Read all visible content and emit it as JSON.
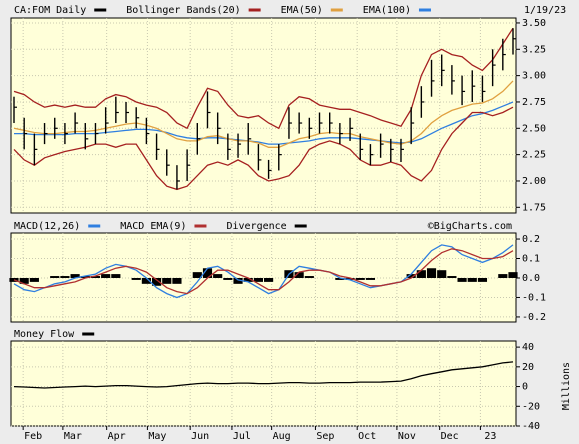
{
  "chart_data": [
    {
      "type": "stock",
      "date": "1/19/23",
      "ylim": [
        1.696,
        3.547
      ],
      "yticks": [
        1.75,
        {
          "value": 2,
          "label": "2.00"
        },
        2.25,
        {
          "value": 2.5,
          "label": "2.50"
        },
        2.75,
        {
          "value": 3,
          "label": "3.00"
        },
        3.25,
        {
          "value": 3.5,
          "label": "3.50"
        }
      ],
      "grid": true,
      "series": [
        {
          "name": "CA:FOM Daily",
          "color": "#000000",
          "high": [
            2.8,
            2.6,
            2.45,
            2.55,
            2.6,
            2.55,
            2.65,
            2.55,
            2.55,
            2.7,
            2.8,
            2.75,
            2.7,
            2.6,
            2.45,
            2.3,
            2.15,
            2.3,
            2.55,
            2.85,
            2.65,
            2.45,
            2.45,
            2.55,
            2.35,
            2.2,
            2.35,
            2.7,
            2.65,
            2.6,
            2.65,
            2.65,
            2.55,
            2.6,
            2.45,
            2.35,
            2.45,
            2.4,
            2.4,
            2.7,
            2.9,
            3.15,
            3.2,
            3.1,
            3.0,
            3.05,
            3.0,
            3.25,
            3.35,
            3.45
          ],
          "low": [
            2.55,
            2.3,
            2.15,
            2.35,
            2.4,
            2.35,
            2.45,
            2.3,
            2.35,
            2.45,
            2.55,
            2.55,
            2.5,
            2.35,
            2.2,
            2.05,
            1.92,
            2.0,
            2.25,
            2.5,
            2.35,
            2.2,
            2.22,
            2.25,
            2.1,
            2.02,
            2.1,
            2.4,
            2.45,
            2.4,
            2.45,
            2.45,
            2.35,
            2.38,
            2.2,
            2.15,
            2.22,
            2.18,
            2.18,
            2.35,
            2.6,
            2.8,
            2.9,
            2.82,
            2.72,
            2.75,
            2.75,
            2.9,
            3.05,
            3.2
          ],
          "close": [
            2.7,
            2.45,
            2.3,
            2.45,
            2.5,
            2.45,
            2.55,
            2.4,
            2.45,
            2.55,
            2.65,
            2.65,
            2.6,
            2.45,
            2.3,
            2.15,
            2.0,
            2.15,
            2.4,
            2.65,
            2.5,
            2.3,
            2.35,
            2.4,
            2.2,
            2.1,
            2.25,
            2.55,
            2.55,
            2.5,
            2.55,
            2.55,
            2.45,
            2.5,
            2.3,
            2.25,
            2.35,
            2.3,
            2.3,
            2.55,
            2.75,
            2.95,
            3.05,
            2.95,
            2.85,
            2.9,
            2.85,
            3.1,
            3.2,
            3.35
          ]
        },
        {
          "name": "Bollinger Bands(20)",
          "color": "#a52020",
          "upper": [
            2.85,
            2.82,
            2.75,
            2.7,
            2.72,
            2.7,
            2.72,
            2.7,
            2.7,
            2.78,
            2.82,
            2.8,
            2.75,
            2.72,
            2.7,
            2.65,
            2.55,
            2.5,
            2.7,
            2.88,
            2.85,
            2.72,
            2.62,
            2.6,
            2.62,
            2.55,
            2.5,
            2.72,
            2.8,
            2.78,
            2.72,
            2.7,
            2.68,
            2.68,
            2.65,
            2.62,
            2.58,
            2.55,
            2.52,
            2.68,
            3.0,
            3.2,
            3.25,
            3.2,
            3.18,
            3.1,
            3.05,
            3.15,
            3.3,
            3.45
          ],
          "lower": [
            2.3,
            2.2,
            2.15,
            2.22,
            2.25,
            2.28,
            2.3,
            2.32,
            2.35,
            2.35,
            2.32,
            2.35,
            2.35,
            2.2,
            2.05,
            1.95,
            1.92,
            1.95,
            2.05,
            2.15,
            2.18,
            2.15,
            2.2,
            2.15,
            2.05,
            2.0,
            2.02,
            2.05,
            2.15,
            2.3,
            2.35,
            2.38,
            2.35,
            2.3,
            2.2,
            2.15,
            2.15,
            2.18,
            2.15,
            2.05,
            2.0,
            2.1,
            2.3,
            2.45,
            2.55,
            2.65,
            2.65,
            2.62,
            2.65,
            2.7
          ]
        },
        {
          "name": "EMA(50)",
          "color": "#e0a040",
          "values": [
            2.5,
            2.48,
            2.46,
            2.45,
            2.45,
            2.46,
            2.47,
            2.47,
            2.48,
            2.5,
            2.52,
            2.54,
            2.55,
            2.53,
            2.5,
            2.45,
            2.4,
            2.38,
            2.38,
            2.42,
            2.43,
            2.4,
            2.38,
            2.38,
            2.36,
            2.32,
            2.32,
            2.36,
            2.4,
            2.42,
            2.45,
            2.46,
            2.45,
            2.45,
            2.42,
            2.4,
            2.38,
            2.36,
            2.35,
            2.38,
            2.45,
            2.55,
            2.62,
            2.67,
            2.7,
            2.73,
            2.74,
            2.78,
            2.85,
            2.95
          ]
        },
        {
          "name": "EMA(100)",
          "color": "#2f7fe0",
          "values": [
            2.45,
            2.45,
            2.44,
            2.44,
            2.44,
            2.44,
            2.45,
            2.45,
            2.45,
            2.46,
            2.47,
            2.48,
            2.49,
            2.49,
            2.48,
            2.46,
            2.43,
            2.41,
            2.4,
            2.41,
            2.41,
            2.4,
            2.39,
            2.38,
            2.37,
            2.35,
            2.35,
            2.36,
            2.37,
            2.38,
            2.4,
            2.41,
            2.41,
            2.41,
            2.4,
            2.39,
            2.38,
            2.37,
            2.36,
            2.37,
            2.4,
            2.45,
            2.5,
            2.54,
            2.58,
            2.62,
            2.64,
            2.67,
            2.71,
            2.75
          ]
        }
      ]
    },
    {
      "type": "line",
      "annotation": "©BigCharts.com",
      "ylim": [
        -0.226,
        0.231
      ],
      "yticks": [
        0.2,
        0.1,
        {
          "value": 0,
          "label": "0.0"
        },
        -0.1,
        -0.2
      ],
      "grid": true,
      "series": [
        {
          "name": "MACD(12,26)",
          "color": "#2f7fe0",
          "values": [
            -0.03,
            -0.06,
            -0.07,
            -0.05,
            -0.03,
            -0.02,
            0.0,
            0.01,
            0.02,
            0.05,
            0.07,
            0.06,
            0.04,
            0.0,
            -0.05,
            -0.08,
            -0.1,
            -0.08,
            -0.02,
            0.05,
            0.06,
            0.03,
            -0.01,
            -0.02,
            -0.05,
            -0.08,
            -0.06,
            0.02,
            0.06,
            0.05,
            0.04,
            0.03,
            0.0,
            -0.01,
            -0.03,
            -0.05,
            -0.04,
            -0.03,
            -0.02,
            0.02,
            0.08,
            0.14,
            0.17,
            0.16,
            0.12,
            0.1,
            0.08,
            0.1,
            0.13,
            0.17
          ]
        },
        {
          "name": "MACD EMA(9)",
          "color": "#b03030",
          "values": [
            -0.01,
            -0.03,
            -0.05,
            -0.05,
            -0.04,
            -0.03,
            -0.02,
            0.0,
            0.01,
            0.03,
            0.05,
            0.06,
            0.05,
            0.03,
            -0.01,
            -0.05,
            -0.07,
            -0.08,
            -0.05,
            0.0,
            0.04,
            0.04,
            0.02,
            0.0,
            -0.03,
            -0.06,
            -0.06,
            -0.02,
            0.03,
            0.04,
            0.04,
            0.03,
            0.01,
            0.0,
            -0.02,
            -0.04,
            -0.04,
            -0.03,
            -0.02,
            0.0,
            0.04,
            0.09,
            0.13,
            0.15,
            0.14,
            0.12,
            0.1,
            0.1,
            0.11,
            0.14
          ]
        },
        {
          "name": "Divergence",
          "color": "#000000",
          "type": "bar",
          "values": [
            -0.02,
            -0.03,
            -0.02,
            0.0,
            0.01,
            0.01,
            0.02,
            0.01,
            0.01,
            0.02,
            0.02,
            0.0,
            -0.01,
            -0.03,
            -0.04,
            -0.03,
            -0.03,
            0.0,
            0.03,
            0.05,
            0.02,
            -0.01,
            -0.03,
            -0.02,
            -0.02,
            -0.02,
            0.0,
            0.04,
            0.03,
            0.01,
            0.0,
            0.0,
            -0.01,
            -0.01,
            -0.01,
            -0.01,
            0.0,
            0.0,
            0.0,
            0.02,
            0.04,
            0.05,
            0.04,
            0.01,
            -0.02,
            -0.02,
            -0.02,
            0.0,
            0.02,
            0.03
          ]
        }
      ]
    },
    {
      "type": "line",
      "y_label": "Millions",
      "ylim": [
        -40,
        46.2
      ],
      "yticks": [
        40,
        20,
        0,
        -20,
        -40
      ],
      "grid": true,
      "xlim": [
        0,
        49
      ],
      "xticks": [
        {
          "value": 0.9,
          "label": "Feb"
        },
        {
          "value": 4.8,
          "label": "Mar"
        },
        {
          "value": 9.1,
          "label": "Apr"
        },
        {
          "value": 13.1,
          "label": "May"
        },
        {
          "value": 17.3,
          "label": "Jun"
        },
        {
          "value": 21.4,
          "label": "Jul"
        },
        {
          "value": 25.3,
          "label": "Aug"
        },
        {
          "value": 29.6,
          "label": "Sep"
        },
        {
          "value": 33.7,
          "label": "Oct"
        },
        {
          "value": 37.6,
          "label": "Nov"
        },
        {
          "value": 41.8,
          "label": "Dec"
        },
        {
          "value": 45.8,
          "label": "23"
        }
      ],
      "series": [
        {
          "name": "Money Flow",
          "color": "#000000",
          "values": [
            0,
            -0.5,
            -1,
            -1.5,
            -1,
            -0.5,
            0,
            0.5,
            0,
            0.5,
            1,
            1,
            0.5,
            0,
            -0.5,
            0,
            1,
            2,
            3,
            3.5,
            3,
            3,
            3.5,
            3.5,
            3,
            3,
            3.5,
            4,
            4,
            3.5,
            3.5,
            4,
            4,
            4,
            4.5,
            4.5,
            4.5,
            5,
            5.5,
            8,
            11,
            13,
            15,
            17,
            18,
            19,
            20,
            22,
            24,
            25
          ]
        }
      ]
    }
  ]
}
